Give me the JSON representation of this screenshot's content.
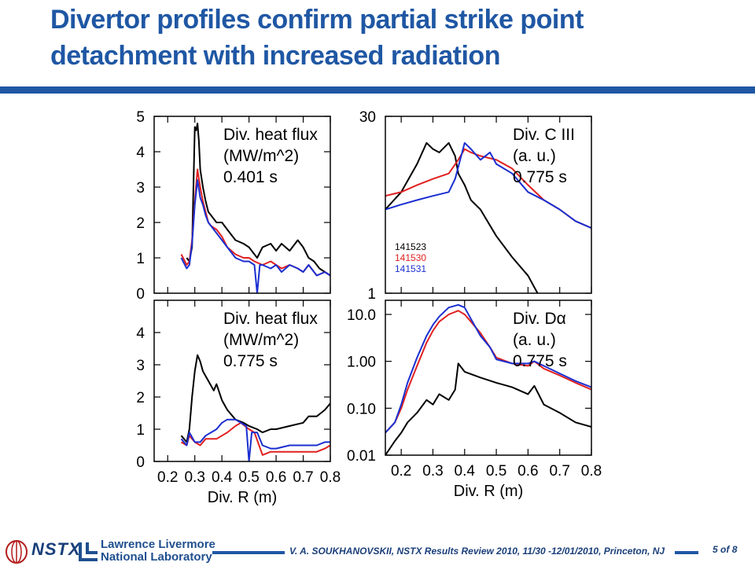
{
  "slide": {
    "title": "Divertor profiles confirm partial strike point detachment with increased radiation",
    "footer_text": "V. A. SOUKHANOVSKII, NSTX Results Review 2010, 11/30 -12/01/2010, Princeton, NJ",
    "page_num": "5",
    "page_of": "of 8",
    "logo_nstx": "NSTX",
    "logo_llnl_line1": "Lawrence Livermore",
    "logo_llnl_line2": "National Laboratory"
  },
  "colors": {
    "brand": "#1f57a4",
    "s141523": "#000000",
    "s141530": "#e02020",
    "s141531": "#1a2fd0"
  },
  "chart_data": [
    {
      "type": "line",
      "label_lines": [
        "Div. heat flux",
        "(MW/m^2)",
        "0.401 s"
      ],
      "ylim": [
        0,
        5
      ],
      "yscale": "linear",
      "yticks": [
        0,
        1,
        2,
        3,
        4,
        5
      ],
      "ytick_labels": [
        "0",
        "1",
        "2",
        "3",
        "4",
        "5"
      ],
      "xlim": [
        0.15,
        0.8
      ],
      "series": [
        {
          "color": "#000000",
          "x": [
            0.27,
            0.28,
            0.29,
            0.3,
            0.305,
            0.31,
            0.315,
            0.32,
            0.33,
            0.34,
            0.35,
            0.36,
            0.38,
            0.4,
            0.42,
            0.45,
            0.48,
            0.5,
            0.52,
            0.53,
            0.55,
            0.58,
            0.6,
            0.62,
            0.65,
            0.68,
            0.7,
            0.72,
            0.74,
            0.76,
            0.78,
            0.8
          ],
          "y": [
            1.0,
            0.9,
            1.3,
            4.7,
            4.6,
            4.8,
            4.3,
            3.5,
            3.0,
            2.6,
            2.3,
            2.2,
            2.0,
            2.0,
            1.8,
            1.5,
            1.4,
            1.3,
            1.1,
            1.0,
            1.3,
            1.4,
            1.2,
            1.4,
            1.2,
            1.5,
            1.3,
            1.0,
            0.9,
            0.7,
            0.6,
            0.5
          ]
        },
        {
          "color": "#e02020",
          "x": [
            0.25,
            0.27,
            0.28,
            0.29,
            0.3,
            0.31,
            0.32,
            0.33,
            0.34,
            0.35,
            0.36,
            0.38,
            0.4,
            0.42,
            0.45,
            0.48,
            0.5,
            0.52,
            0.55,
            0.58,
            0.6,
            0.62,
            0.65,
            0.68,
            0.7,
            0.72,
            0.75,
            0.78,
            0.8
          ],
          "y": [
            1.1,
            0.8,
            0.9,
            1.5,
            2.6,
            3.5,
            3.0,
            2.6,
            2.3,
            2.0,
            1.9,
            1.8,
            1.6,
            1.3,
            1.1,
            1.0,
            1.0,
            0.9,
            0.8,
            0.9,
            0.8,
            0.7,
            0.8,
            0.7,
            0.6,
            0.8,
            0.5,
            0.6,
            0.5
          ]
        },
        {
          "color": "#1a2fd0",
          "x": [
            0.25,
            0.27,
            0.28,
            0.29,
            0.3,
            0.31,
            0.32,
            0.33,
            0.34,
            0.35,
            0.36,
            0.38,
            0.4,
            0.42,
            0.45,
            0.48,
            0.5,
            0.52,
            0.53,
            0.54,
            0.55,
            0.58,
            0.6,
            0.62,
            0.65,
            0.68,
            0.7,
            0.72,
            0.75,
            0.78,
            0.8
          ],
          "y": [
            1.0,
            0.7,
            0.8,
            1.4,
            2.5,
            3.2,
            2.7,
            2.5,
            2.2,
            2.0,
            1.9,
            1.7,
            1.5,
            1.3,
            1.0,
            0.9,
            0.9,
            0.8,
            0.0,
            0.8,
            0.8,
            0.7,
            0.8,
            0.6,
            0.8,
            0.7,
            0.6,
            0.8,
            0.5,
            0.6,
            0.5
          ]
        }
      ]
    },
    {
      "type": "line",
      "label_lines": [
        "Div. heat flux",
        "(MW/m^2)",
        "0.775 s"
      ],
      "ylim": [
        0,
        5
      ],
      "yscale": "linear",
      "yticks": [
        0,
        1,
        2,
        3,
        4
      ],
      "ytick_labels": [
        "0",
        "1",
        "2",
        "3",
        "4"
      ],
      "xlim": [
        0.15,
        0.8
      ],
      "xticks": [
        0.2,
        0.3,
        0.4,
        0.5,
        0.6,
        0.7,
        0.8
      ],
      "xtick_labels": [
        "0.2",
        "0.3",
        "0.4",
        "0.5",
        "0.6",
        "0.7",
        "0.8"
      ],
      "xlabel": "Div. R (m)",
      "series": [
        {
          "color": "#000000",
          "x": [
            0.25,
            0.27,
            0.28,
            0.29,
            0.3,
            0.31,
            0.32,
            0.33,
            0.35,
            0.37,
            0.38,
            0.4,
            0.42,
            0.45,
            0.48,
            0.5,
            0.53,
            0.55,
            0.58,
            0.6,
            0.65,
            0.7,
            0.72,
            0.75,
            0.78,
            0.8
          ],
          "y": [
            0.8,
            0.6,
            1.0,
            2.0,
            2.8,
            3.3,
            3.1,
            2.8,
            2.5,
            2.2,
            2.4,
            1.9,
            1.6,
            1.3,
            1.2,
            1.1,
            1.0,
            0.9,
            1.0,
            1.0,
            1.1,
            1.2,
            1.4,
            1.4,
            1.6,
            1.8
          ]
        },
        {
          "color": "#e02020",
          "x": [
            0.25,
            0.27,
            0.28,
            0.3,
            0.32,
            0.34,
            0.36,
            0.38,
            0.4,
            0.42,
            0.45,
            0.47,
            0.5,
            0.52,
            0.55,
            0.58,
            0.6,
            0.65,
            0.7,
            0.75,
            0.78,
            0.8
          ],
          "y": [
            0.6,
            0.5,
            0.8,
            0.6,
            0.5,
            0.7,
            0.7,
            0.7,
            0.8,
            0.9,
            1.1,
            1.2,
            1.0,
            0.9,
            0.2,
            0.3,
            0.3,
            0.3,
            0.3,
            0.3,
            0.4,
            0.5
          ]
        },
        {
          "color": "#1a2fd0",
          "x": [
            0.25,
            0.27,
            0.28,
            0.3,
            0.32,
            0.34,
            0.36,
            0.38,
            0.4,
            0.42,
            0.45,
            0.47,
            0.49,
            0.5,
            0.51,
            0.53,
            0.55,
            0.58,
            0.6,
            0.65,
            0.7,
            0.75,
            0.78,
            0.8
          ],
          "y": [
            0.7,
            0.5,
            0.9,
            0.6,
            0.6,
            0.8,
            0.9,
            1.0,
            1.2,
            1.3,
            1.3,
            1.2,
            1.1,
            0.0,
            0.9,
            0.9,
            0.5,
            0.4,
            0.4,
            0.5,
            0.5,
            0.5,
            0.6,
            0.6
          ]
        }
      ]
    },
    {
      "type": "line",
      "label_lines": [
        "Div. C III",
        "(a. u.)",
        "0.775 s"
      ],
      "ylim": [
        1,
        30
      ],
      "yscale": "log",
      "yticks": [
        1,
        30
      ],
      "ytick_labels": [
        "1",
        "30"
      ],
      "xlim": [
        0.15,
        0.8
      ],
      "legend": [
        "141523",
        "141530",
        "141531"
      ],
      "series": [
        {
          "color": "#000000",
          "x": [
            0.15,
            0.2,
            0.25,
            0.28,
            0.3,
            0.32,
            0.35,
            0.37,
            0.38,
            0.4,
            0.42,
            0.45,
            0.5,
            0.55,
            0.6,
            0.63
          ],
          "y": [
            5.0,
            7.0,
            12.0,
            18.0,
            16.0,
            15.0,
            18.0,
            14.0,
            10.0,
            8.0,
            6.0,
            5.0,
            3.0,
            2.0,
            1.4,
            1.0
          ]
        },
        {
          "color": "#e02020",
          "x": [
            0.15,
            0.2,
            0.25,
            0.3,
            0.35,
            0.38,
            0.4,
            0.42,
            0.45,
            0.5,
            0.55,
            0.6,
            0.65,
            0.7,
            0.75,
            0.8
          ],
          "y": [
            6.5,
            7.0,
            8.0,
            9.0,
            10.0,
            13.0,
            16.0,
            15.0,
            14.0,
            13.0,
            11.0,
            8.0,
            6.0,
            5.0,
            4.0,
            3.5
          ]
        },
        {
          "color": "#1a2fd0",
          "x": [
            0.15,
            0.2,
            0.25,
            0.3,
            0.35,
            0.37,
            0.4,
            0.42,
            0.45,
            0.48,
            0.5,
            0.55,
            0.6,
            0.65,
            0.7,
            0.75,
            0.8
          ],
          "y": [
            5.0,
            5.5,
            6.0,
            6.5,
            7.0,
            9.0,
            18.0,
            16.0,
            13.0,
            15.0,
            12.0,
            10.0,
            7.0,
            6.0,
            5.0,
            4.0,
            3.5
          ]
        }
      ]
    },
    {
      "type": "line",
      "label_lines": [
        "Div. Dα",
        "(a. u.)",
        "0.775 s"
      ],
      "ylim": [
        0.01,
        20
      ],
      "yscale": "log",
      "yticks": [
        0.01,
        0.1,
        1,
        10
      ],
      "ytick_labels": [
        "0.01",
        "0.10",
        "1.00",
        "10.0"
      ],
      "xlim": [
        0.15,
        0.8
      ],
      "xticks": [
        0.2,
        0.3,
        0.4,
        0.5,
        0.6,
        0.7,
        0.8
      ],
      "xtick_labels": [
        "0.2",
        "0.3",
        "0.4",
        "0.5",
        "0.6",
        "0.7",
        "0.8"
      ],
      "xlabel": "Div. R (m)",
      "series": [
        {
          "color": "#000000",
          "x": [
            0.15,
            0.18,
            0.2,
            0.22,
            0.25,
            0.28,
            0.3,
            0.32,
            0.35,
            0.37,
            0.38,
            0.4,
            0.45,
            0.5,
            0.55,
            0.6,
            0.62,
            0.65,
            0.7,
            0.75,
            0.8
          ],
          "y": [
            0.01,
            0.02,
            0.03,
            0.05,
            0.08,
            0.15,
            0.12,
            0.2,
            0.15,
            0.25,
            0.9,
            0.6,
            0.45,
            0.35,
            0.28,
            0.2,
            0.3,
            0.12,
            0.08,
            0.05,
            0.04
          ]
        },
        {
          "color": "#e02020",
          "x": [
            0.15,
            0.18,
            0.2,
            0.22,
            0.25,
            0.28,
            0.3,
            0.32,
            0.35,
            0.38,
            0.4,
            0.42,
            0.45,
            0.48,
            0.5,
            0.55,
            0.6,
            0.62,
            0.65,
            0.7,
            0.75,
            0.8
          ],
          "y": [
            0.03,
            0.05,
            0.1,
            0.25,
            0.8,
            2.5,
            4.5,
            7.0,
            10.0,
            12.0,
            10.0,
            7.0,
            4.0,
            2.0,
            1.2,
            0.9,
            0.8,
            1.0,
            0.7,
            0.5,
            0.35,
            0.25
          ]
        },
        {
          "color": "#1a2fd0",
          "x": [
            0.15,
            0.18,
            0.2,
            0.22,
            0.25,
            0.28,
            0.3,
            0.32,
            0.35,
            0.38,
            0.4,
            0.42,
            0.45,
            0.48,
            0.5,
            0.55,
            0.6,
            0.62,
            0.65,
            0.7,
            0.75,
            0.8
          ],
          "y": [
            0.03,
            0.05,
            0.12,
            0.35,
            1.2,
            3.5,
            6.0,
            9.0,
            14.0,
            16.0,
            14.0,
            8.0,
            3.5,
            2.0,
            1.1,
            0.9,
            0.9,
            1.0,
            0.8,
            0.55,
            0.38,
            0.28
          ]
        }
      ]
    }
  ]
}
